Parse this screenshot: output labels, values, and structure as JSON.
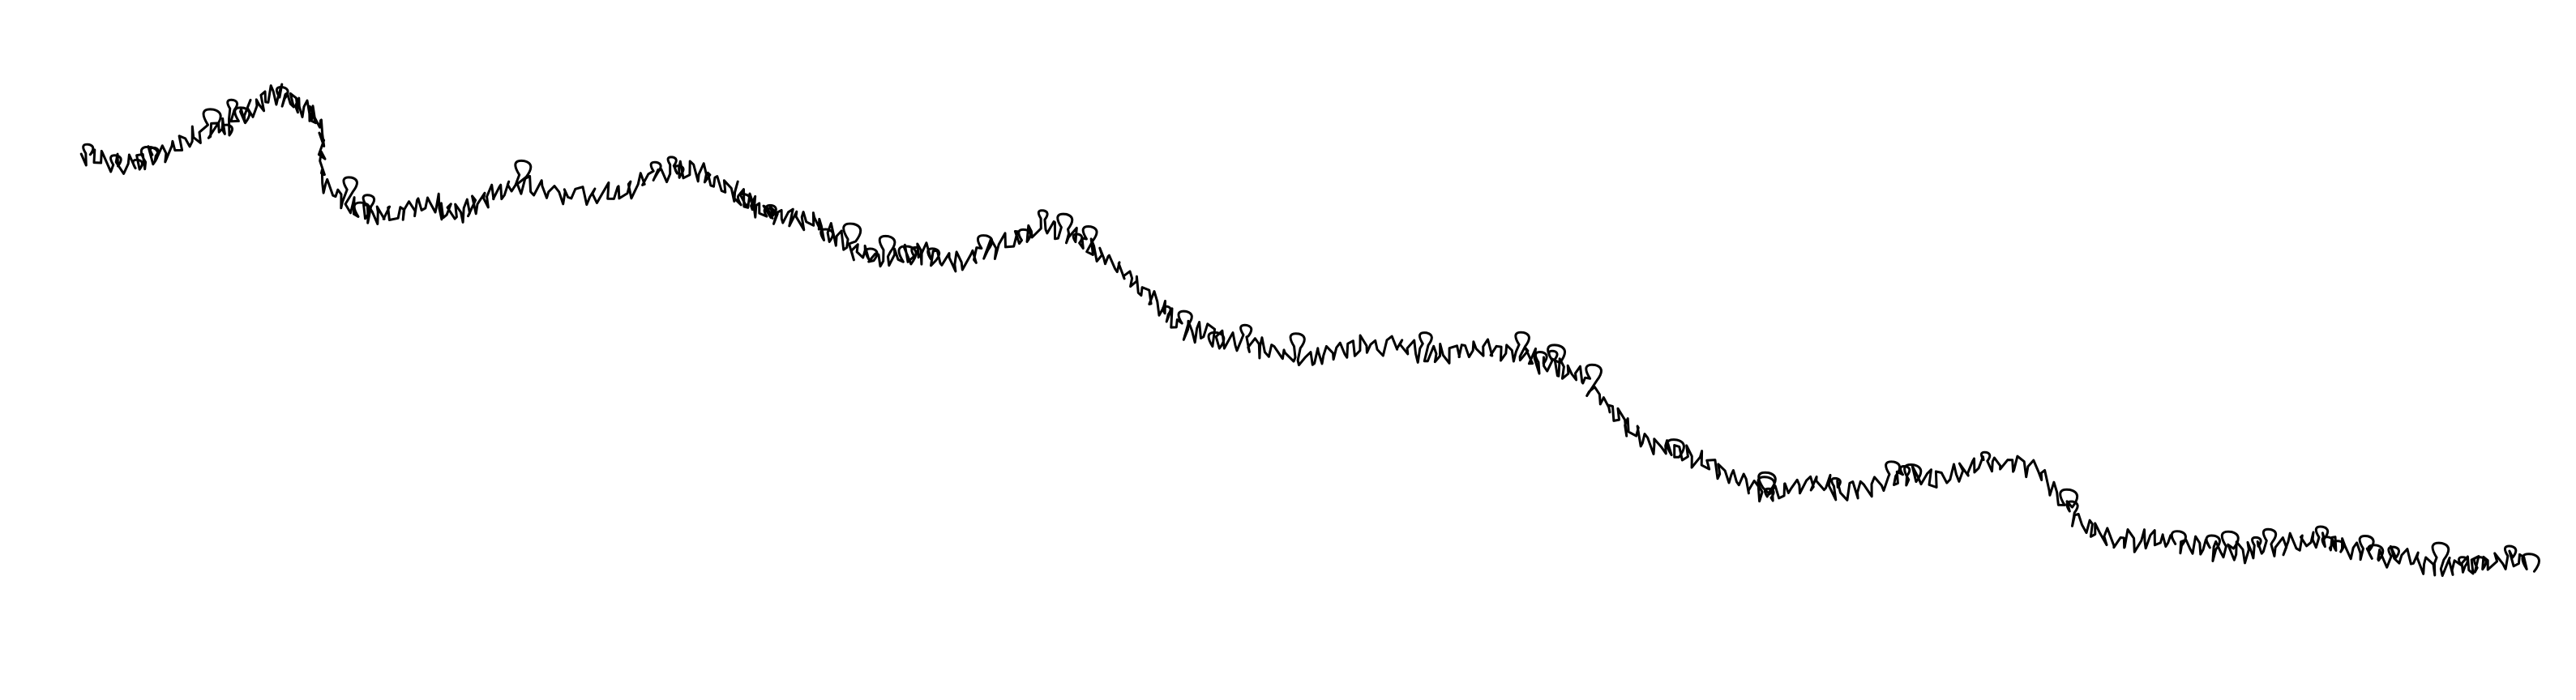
{
  "canvas": {
    "background": "#ffffff"
  },
  "scribble": {
    "description_visible": "",
    "stroke_color": "#000000"
  }
}
